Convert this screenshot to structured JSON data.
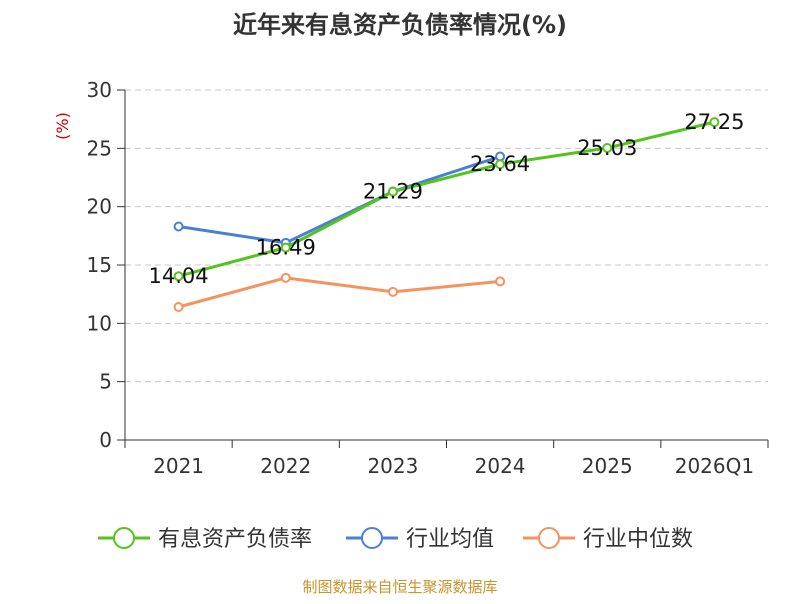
{
  "chart_data": {
    "type": "line",
    "title": "近年来有息资产负债率情况(%)",
    "ylabel": "(%)",
    "categories": [
      "2021",
      "2022",
      "2023",
      "2024",
      "2025",
      "2026Q1"
    ],
    "yticks": [
      "0",
      "5",
      "10",
      "15",
      "20",
      "25",
      "30"
    ],
    "ylim": [
      0,
      30
    ],
    "grid": true,
    "legend_position": "bottom",
    "series": [
      {
        "name": "有息资产负债率",
        "color": "#52c41a",
        "values": [
          14.04,
          16.49,
          21.29,
          23.64,
          25.03,
          27.25
        ],
        "labels": [
          "14.04",
          "16.49",
          "21.29",
          "23.64",
          "25.03",
          "27.25"
        ]
      },
      {
        "name": "行业均值",
        "color": "#4a7fd8",
        "values": [
          18.3,
          16.9,
          21.3,
          24.3,
          null,
          null
        ]
      },
      {
        "name": "行业中位数",
        "color": "#f5925e",
        "values": [
          11.4,
          13.9,
          12.7,
          13.6,
          null,
          null
        ]
      }
    ],
    "source": "制图数据来自恒生聚源数据库"
  }
}
